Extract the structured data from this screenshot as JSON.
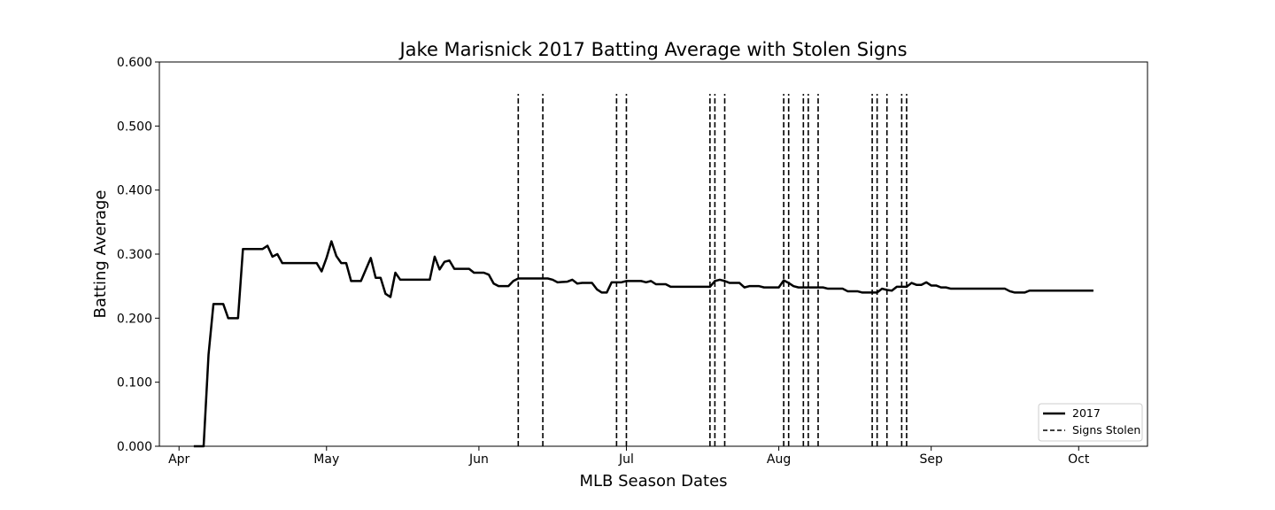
{
  "chart_data": {
    "type": "line",
    "title": "Jake Marisnick 2017 Batting Average with Stolen Signs",
    "xlabel": "MLB Season Dates",
    "ylabel": "Batting Average",
    "xlim": [
      "2017-03-28",
      "2017-10-15"
    ],
    "ylim": [
      0,
      0.6
    ],
    "x_ticks": [
      {
        "date": "2017-04-01",
        "label": "Apr"
      },
      {
        "date": "2017-05-01",
        "label": "May"
      },
      {
        "date": "2017-06-01",
        "label": "Jun"
      },
      {
        "date": "2017-07-01",
        "label": "Jul"
      },
      {
        "date": "2017-08-01",
        "label": "Aug"
      },
      {
        "date": "2017-09-01",
        "label": "Sep"
      },
      {
        "date": "2017-10-01",
        "label": "Oct"
      }
    ],
    "y_ticks": [
      "0.000",
      "0.100",
      "0.200",
      "0.300",
      "0.400",
      "0.500",
      "0.600"
    ],
    "grid": false,
    "legend_position": "bottom-right",
    "series": [
      {
        "name": "2017",
        "style": "solid",
        "color": "#000000",
        "points": [
          [
            "2017-04-04",
            0.0
          ],
          [
            "2017-04-06",
            0.0
          ],
          [
            "2017-04-07",
            0.143
          ],
          [
            "2017-04-08",
            0.222
          ],
          [
            "2017-04-10",
            0.222
          ],
          [
            "2017-04-11",
            0.2
          ],
          [
            "2017-04-13",
            0.2
          ],
          [
            "2017-04-14",
            0.308
          ],
          [
            "2017-04-18",
            0.308
          ],
          [
            "2017-04-19",
            0.313
          ],
          [
            "2017-04-20",
            0.296
          ],
          [
            "2017-04-21",
            0.3
          ],
          [
            "2017-04-22",
            0.286
          ],
          [
            "2017-04-29",
            0.286
          ],
          [
            "2017-04-30",
            0.273
          ],
          [
            "2017-05-01",
            0.294
          ],
          [
            "2017-05-02",
            0.32
          ],
          [
            "2017-05-03",
            0.297
          ],
          [
            "2017-05-04",
            0.286
          ],
          [
            "2017-05-05",
            0.286
          ],
          [
            "2017-05-06",
            0.258
          ],
          [
            "2017-05-08",
            0.258
          ],
          [
            "2017-05-10",
            0.294
          ],
          [
            "2017-05-11",
            0.263
          ],
          [
            "2017-05-12",
            0.263
          ],
          [
            "2017-05-13",
            0.238
          ],
          [
            "2017-05-14",
            0.233
          ],
          [
            "2017-05-15",
            0.271
          ],
          [
            "2017-05-16",
            0.26
          ],
          [
            "2017-05-22",
            0.26
          ],
          [
            "2017-05-23",
            0.296
          ],
          [
            "2017-05-24",
            0.276
          ],
          [
            "2017-05-25",
            0.288
          ],
          [
            "2017-05-26",
            0.29
          ],
          [
            "2017-05-27",
            0.277
          ],
          [
            "2017-05-30",
            0.277
          ],
          [
            "2017-05-31",
            0.271
          ],
          [
            "2017-06-02",
            0.271
          ],
          [
            "2017-06-03",
            0.268
          ],
          [
            "2017-06-04",
            0.254
          ],
          [
            "2017-06-05",
            0.25
          ],
          [
            "2017-06-07",
            0.25
          ],
          [
            "2017-06-08",
            0.258
          ],
          [
            "2017-06-09",
            0.262
          ],
          [
            "2017-06-15",
            0.262
          ],
          [
            "2017-06-16",
            0.26
          ],
          [
            "2017-06-17",
            0.256
          ],
          [
            "2017-06-19",
            0.257
          ],
          [
            "2017-06-20",
            0.26
          ],
          [
            "2017-06-21",
            0.254
          ],
          [
            "2017-06-22",
            0.255
          ],
          [
            "2017-06-24",
            0.255
          ],
          [
            "2017-06-25",
            0.245
          ],
          [
            "2017-06-26",
            0.24
          ],
          [
            "2017-06-27",
            0.24
          ],
          [
            "2017-06-28",
            0.256
          ],
          [
            "2017-06-30",
            0.256
          ],
          [
            "2017-07-01",
            0.258
          ],
          [
            "2017-07-04",
            0.258
          ],
          [
            "2017-07-05",
            0.256
          ],
          [
            "2017-07-06",
            0.258
          ],
          [
            "2017-07-07",
            0.253
          ],
          [
            "2017-07-09",
            0.253
          ],
          [
            "2017-07-10",
            0.249
          ],
          [
            "2017-07-18",
            0.249
          ],
          [
            "2017-07-19",
            0.258
          ],
          [
            "2017-07-20",
            0.26
          ],
          [
            "2017-07-21",
            0.258
          ],
          [
            "2017-07-22",
            0.255
          ],
          [
            "2017-07-24",
            0.255
          ],
          [
            "2017-07-25",
            0.248
          ],
          [
            "2017-07-26",
            0.25
          ],
          [
            "2017-07-28",
            0.25
          ],
          [
            "2017-07-29",
            0.248
          ],
          [
            "2017-08-01",
            0.248
          ],
          [
            "2017-08-02",
            0.259
          ],
          [
            "2017-08-03",
            0.255
          ],
          [
            "2017-08-04",
            0.25
          ],
          [
            "2017-08-05",
            0.248
          ],
          [
            "2017-08-10",
            0.248
          ],
          [
            "2017-08-11",
            0.246
          ],
          [
            "2017-08-14",
            0.246
          ],
          [
            "2017-08-15",
            0.242
          ],
          [
            "2017-08-17",
            0.242
          ],
          [
            "2017-08-18",
            0.24
          ],
          [
            "2017-08-21",
            0.24
          ],
          [
            "2017-08-22",
            0.246
          ],
          [
            "2017-08-23",
            0.244
          ],
          [
            "2017-08-24",
            0.243
          ],
          [
            "2017-08-25",
            0.249
          ],
          [
            "2017-08-27",
            0.249
          ],
          [
            "2017-08-28",
            0.255
          ],
          [
            "2017-08-29",
            0.252
          ],
          [
            "2017-08-30",
            0.252
          ],
          [
            "2017-08-31",
            0.256
          ],
          [
            "2017-09-01",
            0.251
          ],
          [
            "2017-09-02",
            0.251
          ],
          [
            "2017-09-03",
            0.248
          ],
          [
            "2017-09-04",
            0.248
          ],
          [
            "2017-09-05",
            0.246
          ],
          [
            "2017-09-16",
            0.246
          ],
          [
            "2017-09-17",
            0.242
          ],
          [
            "2017-09-18",
            0.24
          ],
          [
            "2017-09-20",
            0.24
          ],
          [
            "2017-09-21",
            0.243
          ],
          [
            "2017-10-04",
            0.243
          ]
        ]
      },
      {
        "name": "Signs Stolen",
        "style": "dashed",
        "color": "#000000",
        "dates": [
          "2017-06-09",
          "2017-06-14",
          "2017-06-29",
          "2017-07-01",
          "2017-07-18",
          "2017-07-19",
          "2017-07-21",
          "2017-08-02",
          "2017-08-03",
          "2017-08-06",
          "2017-08-07",
          "2017-08-09",
          "2017-08-20",
          "2017-08-21",
          "2017-08-23",
          "2017-08-26",
          "2017-08-27"
        ],
        "y_range": [
          0,
          0.55
        ]
      }
    ]
  }
}
